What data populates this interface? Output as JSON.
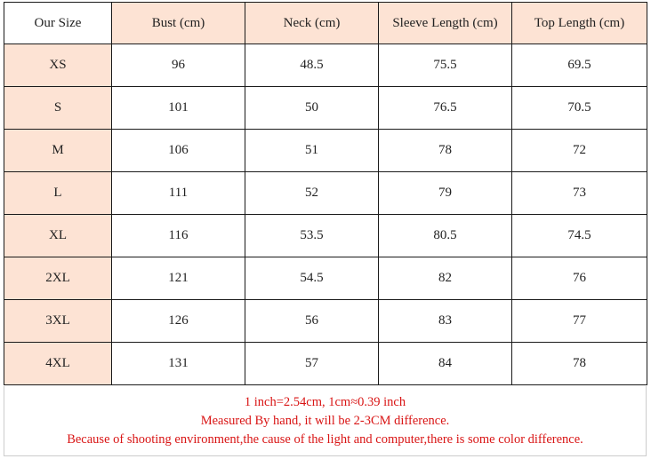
{
  "table": {
    "headers": [
      "Our Size",
      "Bust (cm)",
      "Neck (cm)",
      "Sleeve Length (cm)",
      "Top Length (cm)"
    ],
    "rows": [
      {
        "size": "XS",
        "bust": "96",
        "neck": "48.5",
        "sleeve": "75.5",
        "top": "69.5"
      },
      {
        "size": "S",
        "bust": "101",
        "neck": "50",
        "sleeve": "76.5",
        "top": "70.5"
      },
      {
        "size": "M",
        "bust": "106",
        "neck": "51",
        "sleeve": "78",
        "top": "72"
      },
      {
        "size": "L",
        "bust": "111",
        "neck": "52",
        "sleeve": "79",
        "top": "73"
      },
      {
        "size": "XL",
        "bust": "116",
        "neck": "53.5",
        "sleeve": "80.5",
        "top": "74.5"
      },
      {
        "size": "2XL",
        "bust": "121",
        "neck": "54.5",
        "sleeve": "82",
        "top": "76"
      },
      {
        "size": "3XL",
        "bust": "126",
        "neck": "56",
        "sleeve": "83",
        "top": "77"
      },
      {
        "size": "4XL",
        "bust": "131",
        "neck": "57",
        "sleeve": "84",
        "top": "78"
      }
    ]
  },
  "notes": {
    "line1": "1 inch=2.54cm, 1cm≈0.39 inch",
    "line2": "Measured By hand, it will be 2-3CM difference.",
    "line3": "Because of shooting environment,the cause of the light and computer,there is some color difference."
  },
  "colors": {
    "header_bg": "#fde3d4",
    "note_text": "#d91515",
    "border": "#1a1a1a"
  }
}
